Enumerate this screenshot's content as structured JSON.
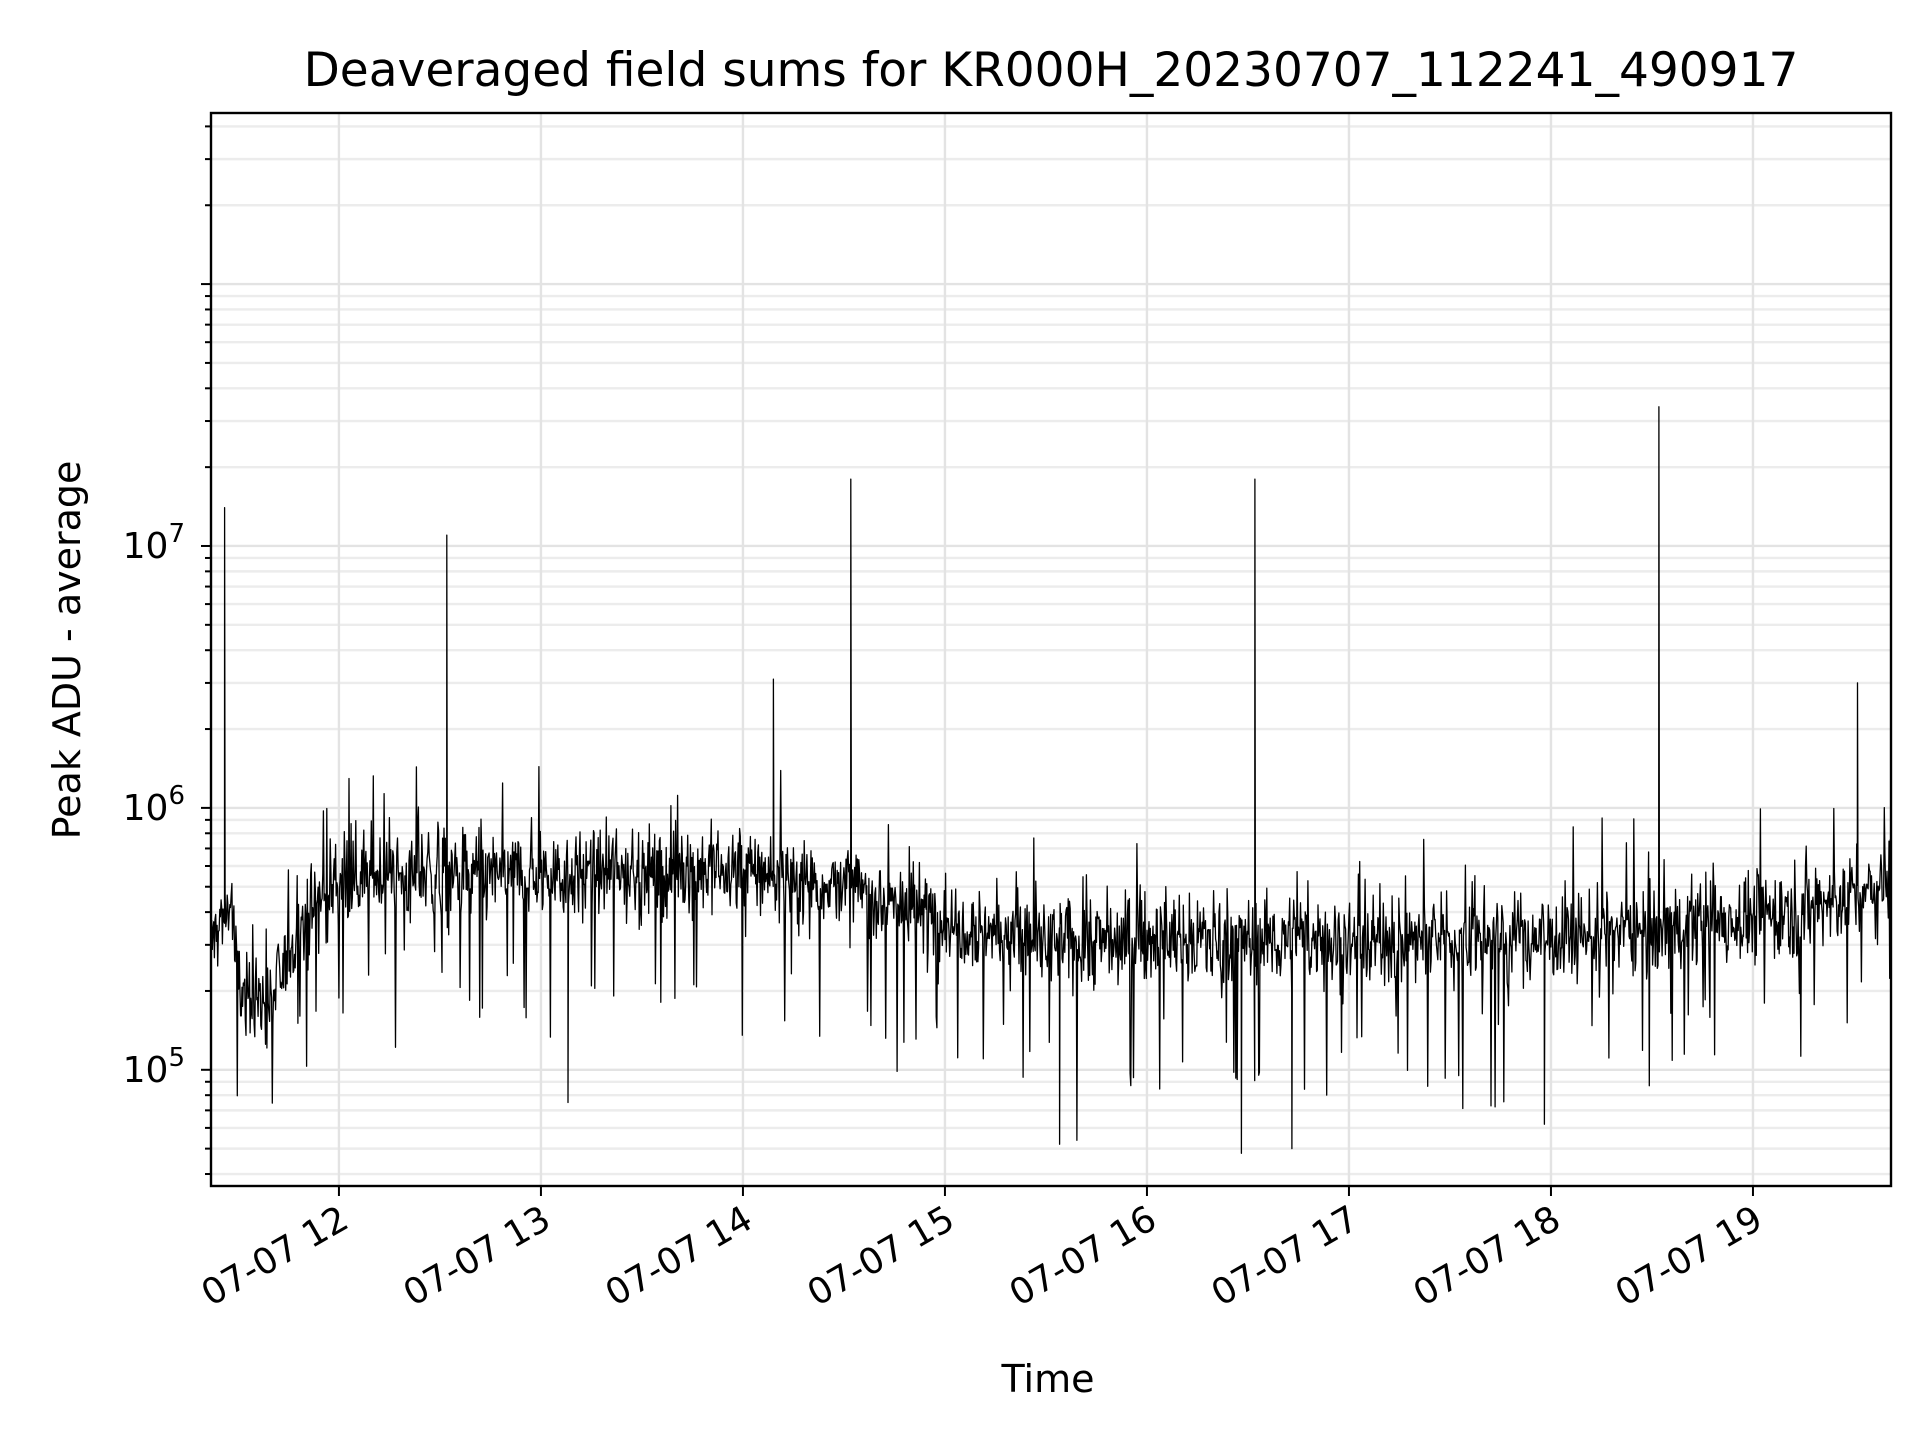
{
  "chart_data": {
    "type": "line",
    "title": "Deaveraged field sums for KR000H_20230707_112241_490917",
    "xlabel": "Time",
    "ylabel": "Peak ADU - average",
    "y_scale": "log",
    "ylim": [
      36000,
      450000000
    ],
    "xlim": [
      "2023-07-07 11:22",
      "2023-07-07 19:41"
    ],
    "grid": true,
    "x_tick_labels": [
      "07-07 12",
      "07-07 13",
      "07-07 14",
      "07-07 15",
      "07-07 16",
      "07-07 17",
      "07-07 18",
      "07-07 19"
    ],
    "x_tick_values": [
      "2023-07-07 12:00",
      "2023-07-07 13:00",
      "2023-07-07 14:00",
      "2023-07-07 15:00",
      "2023-07-07 16:00",
      "2023-07-07 17:00",
      "2023-07-07 18:00",
      "2023-07-07 19:00"
    ],
    "y_tick_labels": [
      {
        "base": "10",
        "exp": "5",
        "value": 100000
      },
      {
        "base": "10",
        "exp": "6",
        "value": 1000000
      },
      {
        "base": "10",
        "exp": "7",
        "value": 10000000
      }
    ],
    "series_color": "#000000",
    "baseline": [
      {
        "x": "2023-07-07 11:22",
        "y": 300000
      },
      {
        "x": "2023-07-07 11:28",
        "y": 450000
      },
      {
        "x": "2023-07-07 11:30",
        "y": 200000
      },
      {
        "x": "2023-07-07 11:40",
        "y": 180000
      },
      {
        "x": "2023-07-07 11:48",
        "y": 350000
      },
      {
        "x": "2023-07-07 12:00",
        "y": 550000
      },
      {
        "x": "2023-07-07 13:00",
        "y": 560000
      },
      {
        "x": "2023-07-07 14:00",
        "y": 580000
      },
      {
        "x": "2023-07-07 14:30",
        "y": 500000
      },
      {
        "x": "2023-07-07 15:00",
        "y": 380000
      },
      {
        "x": "2023-07-07 15:30",
        "y": 300000
      },
      {
        "x": "2023-07-07 16:00",
        "y": 320000
      },
      {
        "x": "2023-07-07 17:00",
        "y": 310000
      },
      {
        "x": "2023-07-07 18:00",
        "y": 320000
      },
      {
        "x": "2023-07-07 19:00",
        "y": 380000
      },
      {
        "x": "2023-07-07 19:41",
        "y": 500000
      }
    ],
    "spikes": [
      {
        "x": "2023-07-07 11:26",
        "y": 14000000
      },
      {
        "x": "2023-07-07 12:32",
        "y": 11000000
      },
      {
        "x": "2023-07-07 14:09",
        "y": 3100000
      },
      {
        "x": "2023-07-07 14:32",
        "y": 18000000
      },
      {
        "x": "2023-07-07 16:32",
        "y": 18000000
      },
      {
        "x": "2023-07-07 18:32",
        "y": 34000000
      },
      {
        "x": "2023-07-07 19:31",
        "y": 3000000
      }
    ],
    "dips": [
      {
        "x": "2023-07-07 13:08",
        "y": 75000
      },
      {
        "x": "2023-07-07 15:34",
        "y": 52000
      },
      {
        "x": "2023-07-07 16:28",
        "y": 48000
      },
      {
        "x": "2023-07-07 16:43",
        "y": 50000
      },
      {
        "x": "2023-07-07 17:58",
        "y": 62000
      }
    ]
  }
}
